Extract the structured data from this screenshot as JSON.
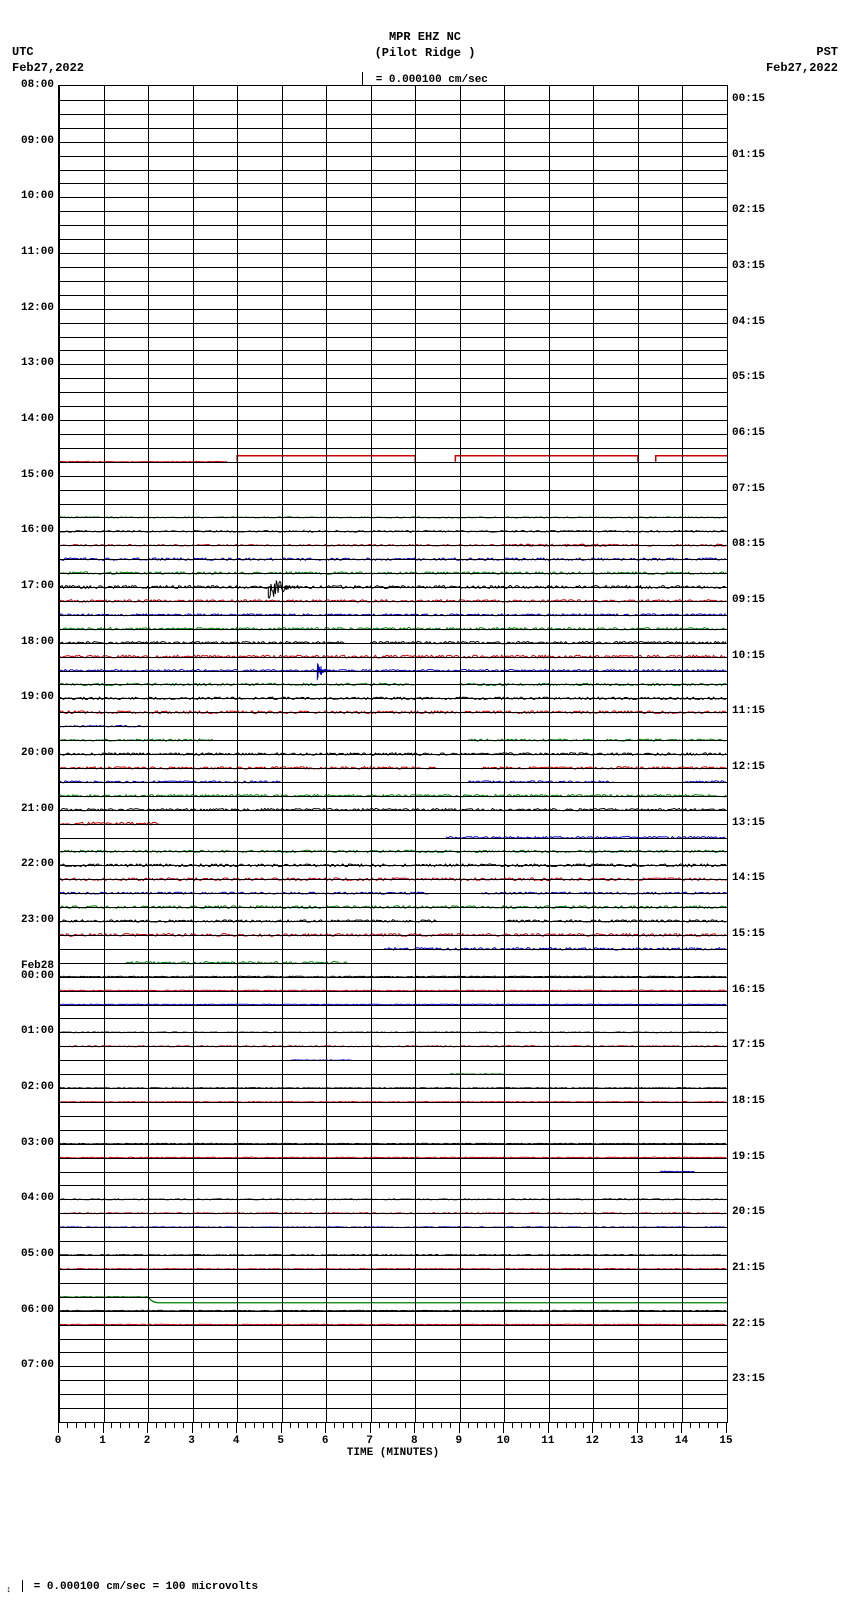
{
  "header": {
    "left_tz": "UTC",
    "left_date": "Feb27,2022",
    "right_tz": "PST",
    "right_date": "Feb27,2022",
    "title_line1": "MPR EHZ NC",
    "title_line2": "(Pilot Ridge )",
    "scale_text": "= 0.000100 cm/sec"
  },
  "chart": {
    "utc_hours": [
      "08:00",
      "09:00",
      "10:00",
      "11:00",
      "12:00",
      "13:00",
      "14:00",
      "15:00",
      "16:00",
      "17:00",
      "18:00",
      "19:00",
      "20:00",
      "21:00",
      "22:00",
      "23:00",
      "00:00",
      "01:00",
      "02:00",
      "03:00",
      "04:00",
      "05:00",
      "06:00",
      "07:00"
    ],
    "utc_day_break_index": 16,
    "utc_day_break_label": "Feb28",
    "pst_hours": [
      "00:15",
      "01:15",
      "02:15",
      "03:15",
      "04:15",
      "05:15",
      "06:15",
      "07:15",
      "08:15",
      "09:15",
      "10:15",
      "11:15",
      "12:15",
      "13:15",
      "14:15",
      "15:15",
      "16:15",
      "17:15",
      "18:15",
      "19:15",
      "20:15",
      "21:15",
      "22:15",
      "23:15"
    ],
    "total_rows": 96,
    "x_major_ticks": [
      0,
      1,
      2,
      3,
      4,
      5,
      6,
      7,
      8,
      9,
      10,
      11,
      12,
      13,
      14,
      15
    ],
    "x_axis_title": "TIME (MINUTES)",
    "grid_major_v": [
      0,
      1,
      2,
      3,
      4,
      5,
      6,
      7,
      8,
      9,
      10,
      11,
      12,
      13,
      14,
      15
    ],
    "grid_minor_v_step": 0.1,
    "row_colors": [
      "#000000",
      "#cc0000",
      "#0000cc",
      "#008000"
    ],
    "background": "#ffffff",
    "line_width": 1,
    "red_gap_row": {
      "row_idx": 27,
      "segments": [
        [
          4.0,
          8.0
        ],
        [
          8.9,
          13.0
        ],
        [
          13.4,
          15.0
        ]
      ],
      "lift": 6,
      "prelude": [
        0,
        3.8
      ]
    },
    "noise_rows": [
      {
        "row": 31,
        "amp": 0.6,
        "breaks": []
      },
      {
        "row": 32,
        "amp": 0.8,
        "breaks": []
      },
      {
        "row": 33,
        "amp": 0.8,
        "breaks": [],
        "extra_seg": [
          [
            10.2,
            12.5
          ],
          [
            14.7,
            15.0
          ]
        ],
        "extra_color": "#cc0000",
        "extra_amp": 1.2
      },
      {
        "row": 34,
        "amp": 1.2,
        "breaks": []
      },
      {
        "row": 35,
        "amp": 1.2,
        "breaks": []
      },
      {
        "row": 36,
        "amp": 1.5,
        "breaks": [],
        "event": {
          "x": 4.7,
          "w": 0.8,
          "h": 14
        }
      },
      {
        "row": 37,
        "amp": 1.2,
        "breaks": []
      },
      {
        "row": 38,
        "amp": 1.0,
        "breaks": []
      },
      {
        "row": 39,
        "amp": 1.2,
        "breaks": []
      },
      {
        "row": 40,
        "amp": 1.2,
        "breaks": [
          [
            6.5,
            7.0
          ]
        ]
      },
      {
        "row": 41,
        "amp": 1.4,
        "breaks": []
      },
      {
        "row": 42,
        "amp": 1.0,
        "breaks": [],
        "event": {
          "x": 5.8,
          "w": 0.3,
          "h": 10
        }
      },
      {
        "row": 43,
        "amp": 1.2,
        "breaks": [
          [
            8.0,
            9.0
          ]
        ]
      },
      {
        "row": 44,
        "amp": 1.2,
        "breaks": []
      },
      {
        "row": 45,
        "amp": 1.4,
        "breaks": []
      },
      {
        "row": 46,
        "amp": 0.8,
        "breaks": [
          [
            2,
            15
          ]
        ]
      },
      {
        "row": 47,
        "amp": 1.0,
        "breaks": [
          [
            3.5,
            9.2
          ]
        ]
      },
      {
        "row": 48,
        "amp": 1.2,
        "breaks": []
      },
      {
        "row": 49,
        "amp": 1.2,
        "breaks": [
          [
            8.5,
            9.5
          ]
        ]
      },
      {
        "row": 50,
        "amp": 1.0,
        "breaks": [
          [
            5,
            9.2
          ],
          [
            12.5,
            14
          ]
        ]
      },
      {
        "row": 51,
        "amp": 1.2,
        "breaks": []
      },
      {
        "row": 52,
        "amp": 1.2,
        "breaks": []
      },
      {
        "row": 53,
        "amp": 1.4,
        "breaks": [
          [
            2.3,
            15
          ]
        ]
      },
      {
        "row": 54,
        "amp": 1.0,
        "breaks": [
          [
            0,
            8.7
          ]
        ]
      },
      {
        "row": 55,
        "amp": 1.2,
        "breaks": []
      },
      {
        "row": 56,
        "amp": 1.4,
        "breaks": []
      },
      {
        "row": 57,
        "amp": 1.4,
        "breaks": []
      },
      {
        "row": 58,
        "amp": 1.0,
        "breaks": [
          [
            8.3,
            9.5
          ]
        ]
      },
      {
        "row": 59,
        "amp": 1.4,
        "breaks": []
      },
      {
        "row": 60,
        "amp": 1.2,
        "breaks": [
          [
            8.5,
            10
          ]
        ]
      },
      {
        "row": 61,
        "amp": 1.4,
        "breaks": []
      },
      {
        "row": 62,
        "amp": 1.2,
        "breaks": [
          [
            0,
            7.3
          ]
        ]
      },
      {
        "row": 63,
        "amp": 1.2,
        "breaks": [
          [
            0,
            1.5
          ],
          [
            6.5,
            15
          ]
        ]
      },
      {
        "row": 64,
        "amp": 0.5,
        "breaks": []
      },
      {
        "row": 65,
        "amp": 0.5,
        "breaks": []
      },
      {
        "row": 66,
        "amp": 0.4,
        "breaks": []
      },
      {
        "row": 68,
        "amp": 0.4,
        "breaks": []
      },
      {
        "row": 69,
        "amp": 0.6,
        "breaks": []
      },
      {
        "row": 70,
        "amp": 0.4,
        "breaks": [
          [
            0,
            5.2
          ],
          [
            6.6,
            15
          ]
        ]
      },
      {
        "row": 71,
        "amp": 0.4,
        "breaks": [
          [
            0,
            8.8
          ],
          [
            10,
            15
          ]
        ]
      },
      {
        "row": 72,
        "amp": 0.4,
        "breaks": []
      },
      {
        "row": 73,
        "amp": 0.4,
        "breaks": []
      },
      {
        "row": 76,
        "amp": 0.4,
        "breaks": []
      },
      {
        "row": 77,
        "amp": 0.5,
        "breaks": []
      },
      {
        "row": 78,
        "amp": 0.4,
        "breaks": [
          [
            0,
            13.5
          ],
          [
            14.3,
            15
          ]
        ]
      },
      {
        "row": 80,
        "amp": 0.5,
        "breaks": []
      },
      {
        "row": 81,
        "amp": 0.6,
        "breaks": []
      },
      {
        "row": 82,
        "amp": 0.4,
        "breaks": []
      },
      {
        "row": 84,
        "amp": 0.5,
        "breaks": []
      },
      {
        "row": 85,
        "amp": 0.4,
        "breaks": []
      },
      {
        "row": 88,
        "amp": 0.4,
        "breaks": []
      },
      {
        "row": 89,
        "amp": 0.4,
        "breaks": []
      }
    ],
    "step_row": {
      "row": 87,
      "drop_x": 2.0,
      "drop_h": 6
    }
  },
  "footer": {
    "note": "= 0.000100 cm/sec =    100 microvolts"
  }
}
